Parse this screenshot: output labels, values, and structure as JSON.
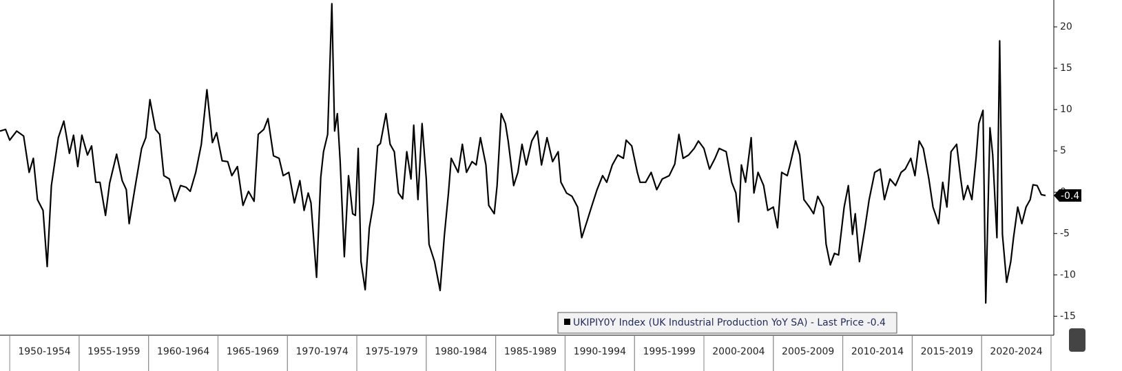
{
  "chart_data": {
    "type": "line",
    "xlim": [
      1949.3,
      2025.2
    ],
    "ylim": [
      -17.3,
      23.25
    ],
    "yticks": [
      20,
      15,
      10,
      5,
      0,
      -5,
      -10,
      -15
    ],
    "x_periods": [
      {
        "value": 1952.5,
        "label": "1950-1954"
      },
      {
        "value": 1957.5,
        "label": "1955-1959"
      },
      {
        "value": 1962.5,
        "label": "1960-1964"
      },
      {
        "value": 1967.5,
        "label": "1965-1969"
      },
      {
        "value": 1972.5,
        "label": "1970-1974"
      },
      {
        "value": 1977.5,
        "label": "1975-1979"
      },
      {
        "value": 1982.5,
        "label": "1980-1984"
      },
      {
        "value": 1987.5,
        "label": "1985-1989"
      },
      {
        "value": 1992.5,
        "label": "1990-1994"
      },
      {
        "value": 1997.5,
        "label": "1995-1999"
      },
      {
        "value": 2002.5,
        "label": "2000-2004"
      },
      {
        "value": 2007.5,
        "label": "2005-2009"
      },
      {
        "value": 2012.5,
        "label": "2010-2014"
      },
      {
        "value": 2017.5,
        "label": "2015-2019"
      },
      {
        "value": 2022.5,
        "label": "2020-2024"
      }
    ],
    "last_price": -0.4,
    "series": [
      {
        "name": "UKIPIY0Y Index (UK Industrial Production YoY SA) - Last Price -0.4",
        "color": "#000000",
        "x": [
          1949.3,
          1949.7,
          1950.0,
          1950.5,
          1951.0,
          1951.4,
          1951.7,
          1952.0,
          1952.4,
          1952.7,
          1953.0,
          1953.5,
          1953.9,
          1954.3,
          1954.6,
          1954.9,
          1955.2,
          1955.6,
          1955.9,
          1956.2,
          1956.5,
          1956.9,
          1957.2,
          1957.7,
          1958.1,
          1958.4,
          1958.6,
          1959.0,
          1959.5,
          1959.8,
          1960.1,
          1960.5,
          1960.8,
          1961.1,
          1961.5,
          1961.9,
          1962.3,
          1962.7,
          1963.0,
          1963.4,
          1963.8,
          1964.2,
          1964.6,
          1964.9,
          1965.3,
          1965.7,
          1966.0,
          1966.4,
          1966.8,
          1967.2,
          1967.6,
          1967.9,
          1968.3,
          1968.6,
          1969.0,
          1969.4,
          1969.7,
          1970.1,
          1970.5,
          1970.9,
          1971.2,
          1971.5,
          1971.7,
          1972.1,
          1972.4,
          1972.6,
          1972.9,
          1973.2,
          1973.4,
          1973.6,
          1973.8,
          1974.1,
          1974.4,
          1974.7,
          1974.9,
          1975.1,
          1975.3,
          1975.6,
          1975.9,
          1976.2,
          1976.5,
          1976.7,
          1977.1,
          1977.4,
          1977.7,
          1978.0,
          1978.3,
          1978.6,
          1978.9,
          1979.1,
          1979.4,
          1979.7,
          1980.0,
          1980.2,
          1980.6,
          1981.0,
          1981.3,
          1981.6,
          1981.8,
          1982.3,
          1982.6,
          1982.9,
          1983.3,
          1983.6,
          1983.9,
          1984.3,
          1984.5,
          1984.9,
          1985.1,
          1985.4,
          1985.7,
          1985.9,
          1986.3,
          1986.6,
          1986.9,
          1987.2,
          1987.6,
          1988.0,
          1988.3,
          1988.7,
          1989.1,
          1989.5,
          1989.7,
          1990.1,
          1990.5,
          1990.9,
          1991.2,
          1991.6,
          1991.9,
          1992.3,
          1992.7,
          1993.0,
          1993.4,
          1993.8,
          1994.2,
          1994.4,
          1994.8,
          1995.2,
          1995.4,
          1995.8,
          1996.2,
          1996.6,
          1997.0,
          1997.5,
          1997.9,
          1998.2,
          1998.5,
          1998.9,
          1999.3,
          1999.6,
          2000.0,
          2000.4,
          2000.8,
          2001.1,
          2001.6,
          2002.0,
          2002.3,
          2002.5,
          2002.7,
          2003.0,
          2003.4,
          2003.6,
          2003.9,
          2004.3,
          2004.6,
          2005.0,
          2005.3,
          2005.6,
          2006.0,
          2006.2,
          2006.6,
          2006.9,
          2007.2,
          2007.6,
          2007.9,
          2008.2,
          2008.6,
          2008.8,
          2009.1,
          2009.4,
          2009.7,
          2010.1,
          2010.4,
          2010.7,
          2010.9,
          2011.2,
          2011.6,
          2011.9,
          2012.3,
          2012.7,
          2013.0,
          2013.4,
          2013.8,
          2014.2,
          2014.5,
          2014.9,
          2015.2,
          2015.5,
          2015.8,
          2016.2,
          2016.5,
          2016.9,
          2017.2,
          2017.5,
          2017.8,
          2018.2,
          2018.5,
          2018.7,
          2019.0,
          2019.3,
          2019.6,
          2019.8,
          2020.1,
          2020.3,
          2020.6,
          2020.8,
          2021.1,
          2021.3,
          2021.5,
          2021.8,
          2022.1,
          2022.3,
          2022.6,
          2022.9,
          2023.2,
          2023.5,
          2023.7,
          2024.0,
          2024.3,
          2024.6
        ],
        "values": [
          7.4,
          7.6,
          6.3,
          7.4,
          6.8,
          2.4,
          4.1,
          -0.9,
          -2.2,
          -9.0,
          0.8,
          6.6,
          8.6,
          4.7,
          6.9,
          3.1,
          6.9,
          4.5,
          5.6,
          1.2,
          1.2,
          -2.8,
          1.1,
          4.6,
          1.4,
          0.3,
          -3.8,
          0.3,
          5.3,
          6.6,
          11.2,
          7.6,
          7.0,
          2.0,
          1.6,
          -1.1,
          0.8,
          0.6,
          0.1,
          2.4,
          5.8,
          12.4,
          6.0,
          7.2,
          3.8,
          3.7,
          2.0,
          3.1,
          -1.6,
          0.1,
          -1.1,
          7.0,
          7.6,
          8.9,
          4.4,
          4.1,
          2.0,
          2.4,
          -1.3,
          1.4,
          -2.2,
          -0.1,
          -1.3,
          -10.3,
          1.8,
          4.9,
          7.0,
          22.8,
          7.4,
          9.5,
          3.7,
          -7.8,
          2.0,
          -2.6,
          -2.8,
          5.3,
          -8.4,
          -11.8,
          -4.3,
          -1.3,
          5.6,
          5.9,
          9.5,
          5.8,
          4.9,
          -0.1,
          -0.8,
          4.9,
          1.6,
          8.1,
          -0.9,
          8.3,
          1.6,
          -6.3,
          -8.4,
          -11.9,
          -5.3,
          -0.1,
          4.1,
          2.4,
          5.8,
          2.4,
          3.7,
          3.3,
          6.6,
          3.3,
          -1.6,
          -2.6,
          0.8,
          9.5,
          8.3,
          6.2,
          0.8,
          2.4,
          5.8,
          3.3,
          6.2,
          7.4,
          3.3,
          6.6,
          3.7,
          4.9,
          1.2,
          -0.1,
          -0.5,
          -1.8,
          -5.5,
          -3.4,
          -1.8,
          0.3,
          2.0,
          1.2,
          3.3,
          4.5,
          4.1,
          6.3,
          5.6,
          2.4,
          1.2,
          1.2,
          2.4,
          0.3,
          1.6,
          2.0,
          3.4,
          7.0,
          4.1,
          4.5,
          5.3,
          6.2,
          5.3,
          2.8,
          4.1,
          5.3,
          4.9,
          1.2,
          -0.1,
          -3.6,
          3.3,
          1.2,
          6.6,
          -0.1,
          2.4,
          0.8,
          -2.2,
          -1.8,
          -4.3,
          2.4,
          2.0,
          3.3,
          6.2,
          4.5,
          -0.9,
          -1.8,
          -2.6,
          -0.5,
          -1.8,
          -6.3,
          -8.8,
          -7.4,
          -7.6,
          -1.8,
          0.8,
          -5.1,
          -2.6,
          -8.4,
          -4.3,
          -0.9,
          2.4,
          2.8,
          -0.9,
          1.6,
          0.8,
          2.4,
          2.8,
          4.1,
          2.0,
          6.2,
          5.3,
          1.6,
          -1.8,
          -3.8,
          1.2,
          -1.8,
          4.9,
          5.8,
          1.6,
          -0.9,
          0.8,
          -0.9,
          4.1,
          8.3,
          9.9,
          -13.4,
          7.8,
          4.5,
          -5.5,
          18.3,
          -5.1,
          -10.9,
          -8.4,
          -5.5,
          -1.8,
          -3.8,
          -1.8,
          -0.9,
          0.9,
          0.8,
          -0.3,
          -0.4
        ]
      }
    ]
  }
}
